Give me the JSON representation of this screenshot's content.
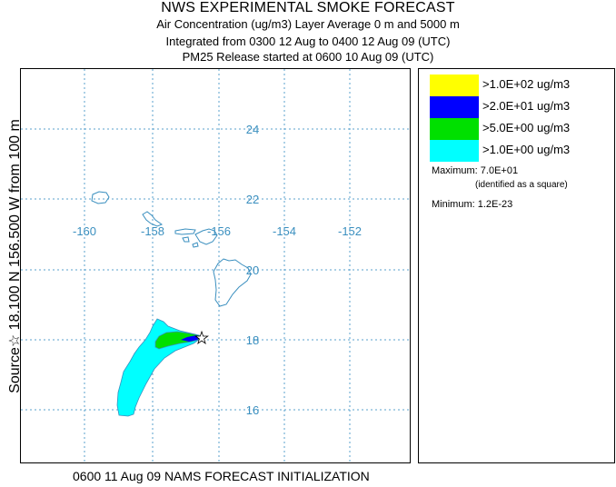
{
  "titles": {
    "main": "NWS EXPERIMENTAL SMOKE FORECAST",
    "line2": "Air Concentration (ug/m3) Layer Average    0 m and  5000 m",
    "line3": "Integrated from 0300 12 Aug to 0400 12 Aug 09 (UTC)",
    "line4": "PM25 Release started at 0600 10 Aug 09 (UTC)"
  },
  "side_label": "Source☆ 18.100 N 156.500  W     from  100 m",
  "bottom_label": "0600 11 Aug 09 NAMS FORECAST INITIALIZATION",
  "map": {
    "lon_labels": [
      "-160",
      "-158",
      "-156",
      "-154",
      "-152"
    ],
    "lat_labels": [
      "24",
      "22",
      "20",
      "18",
      "16"
    ],
    "grid_color": "#5aa0cc",
    "coast_color": "#3a8fbf",
    "source_marker": "star-icon",
    "max_marker": "square-icon"
  },
  "legend": {
    "items": [
      {
        "label": ">1.0E+02 ug/m3",
        "color": "#ffff00"
      },
      {
        "label": ">2.0E+01 ug/m3",
        "color": "#0000ff"
      },
      {
        "label": ">5.0E+00 ug/m3",
        "color": "#00e000"
      },
      {
        "label": ">1.0E+00 ug/m3",
        "color": "#00ffff"
      }
    ],
    "maximum": "Maximum: 7.0E+01",
    "max_note": "(identified as a square)",
    "minimum": "Minimum: 1.2E-23"
  }
}
